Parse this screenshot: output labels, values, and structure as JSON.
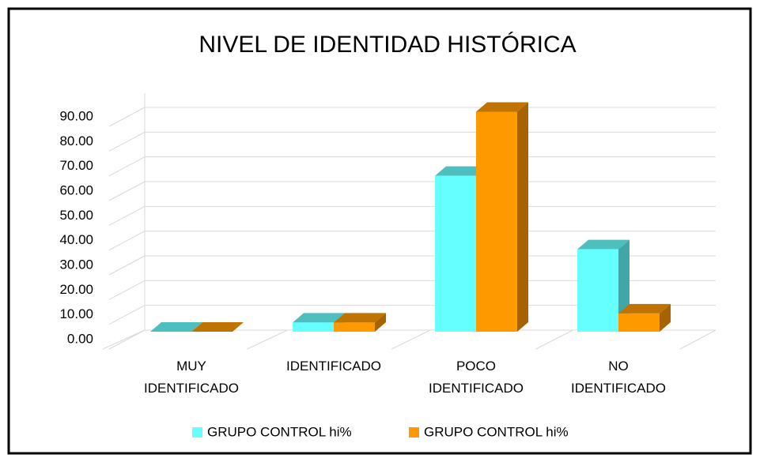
{
  "chart_data": {
    "type": "bar3d",
    "title": "NIVEL DE IDENTIDAD HISTÓRICA",
    "categories": [
      "MUY IDENTIFICADO",
      "IDENTIFICADO",
      "POCO IDENTIFICADO",
      "NO IDENTIFICADO"
    ],
    "series": [
      {
        "name": "GRUPO CONTROL hi%",
        "color": "#66ffff",
        "values": [
          0,
          3.7,
          63,
          33.3
        ]
      },
      {
        "name": "GRUPO CONTROL hi%",
        "color": "#ff9900",
        "values": [
          0,
          3.7,
          88.9,
          7.4
        ]
      }
    ],
    "ylim": [
      0,
      90
    ],
    "yticks": [
      {
        "value": 0,
        "label": "0.00"
      },
      {
        "value": 10,
        "label": "10.00"
      },
      {
        "value": 20,
        "label": "20.00"
      },
      {
        "value": 30,
        "label": "30.00"
      },
      {
        "value": 40,
        "label": "40.00"
      },
      {
        "value": 50,
        "label": "50.00"
      },
      {
        "value": 60,
        "label": "60.00"
      },
      {
        "value": 70,
        "label": "70.00"
      },
      {
        "value": 80,
        "label": "80.00"
      },
      {
        "value": 90,
        "label": "90.00"
      }
    ],
    "grid": true,
    "legend": "bottom"
  }
}
